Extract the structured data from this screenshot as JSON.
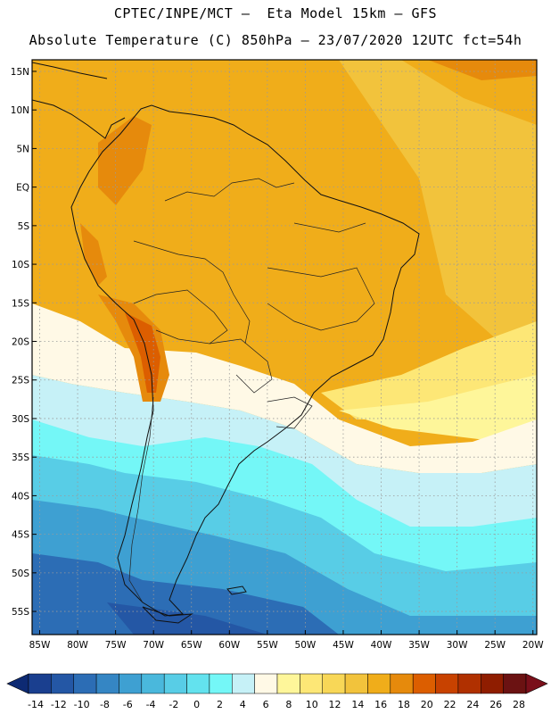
{
  "header": {
    "line1": "CPTEC/INPE/MCT –  Eta Model 15km – GFS",
    "line2": "Absolute Temperature (C) 850hPa – 23/07/2020 12UTC fct=54h"
  },
  "axes": {
    "lat_labels": [
      "15N",
      "10N",
      "5N",
      "EQ",
      "5S",
      "10S",
      "15S",
      "20S",
      "25S",
      "30S",
      "35S",
      "40S",
      "45S",
      "50S",
      "55S"
    ],
    "lat_values": [
      15,
      10,
      5,
      0,
      -5,
      -10,
      -15,
      -20,
      -25,
      -30,
      -35,
      -40,
      -45,
      -50,
      -55
    ],
    "lon_labels": [
      "85W",
      "80W",
      "75W",
      "70W",
      "65W",
      "60W",
      "55W",
      "50W",
      "45W",
      "40W",
      "35W",
      "30W",
      "25W",
      "20W"
    ],
    "lon_values": [
      -85,
      -80,
      -75,
      -70,
      -65,
      -60,
      -55,
      -50,
      -45,
      -40,
      -35,
      -30,
      -25,
      -20
    ],
    "lat_range": [
      -58,
      16.5
    ],
    "lon_range": [
      -86,
      -19.5
    ]
  },
  "colorbar": {
    "labels": [
      "-14",
      "-12",
      "-10",
      "-8",
      "-6",
      "-4",
      "-2",
      "0",
      "2",
      "4",
      "6",
      "8",
      "10",
      "12",
      "14",
      "16",
      "18",
      "20",
      "22",
      "24",
      "26",
      "28"
    ],
    "colors": [
      "#1a3f8f",
      "#2457a5",
      "#2c6db5",
      "#3586c4",
      "#3ea0d2",
      "#4ab8dc",
      "#58cde6",
      "#63e2ee",
      "#74f7f7",
      "#c6f1f7",
      "#fff9e6",
      "#fef69a",
      "#fde776",
      "#f8d757",
      "#f2c33c",
      "#f0ad1a",
      "#e68a0c",
      "#dc5e00",
      "#c84200",
      "#b03000",
      "#8f1d00",
      "#6b1212"
    ],
    "under_color": "#0d2a73",
    "over_color": "#7a0f1a"
  }
}
